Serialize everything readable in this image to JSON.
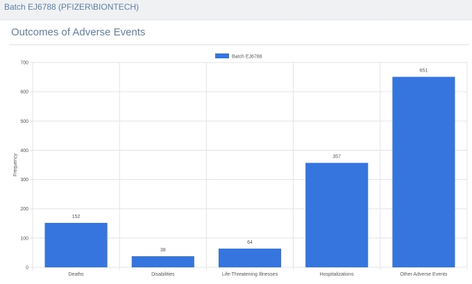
{
  "header": {
    "title": "Batch EJ6788 (PFIZER\\BIONTECH)"
  },
  "card": {
    "title": "Outcomes of Adverse Events"
  },
  "chart_data": {
    "type": "bar",
    "categories": [
      "Deaths",
      "Disabilities",
      "Life-Threatening Illnesses",
      "Hospitalizations",
      "Other Adverse Events"
    ],
    "series": [
      {
        "name": "Batch EJ6788",
        "values": [
          152,
          38,
          64,
          357,
          651
        ],
        "color": "#3674de"
      }
    ],
    "xlabel": "",
    "ylabel": "Frequency",
    "ylim": [
      0,
      700
    ],
    "yticks": [
      0,
      100,
      200,
      300,
      400,
      500,
      600,
      700
    ],
    "grid": true,
    "legend_position": "top-center",
    "data_labels": true
  }
}
